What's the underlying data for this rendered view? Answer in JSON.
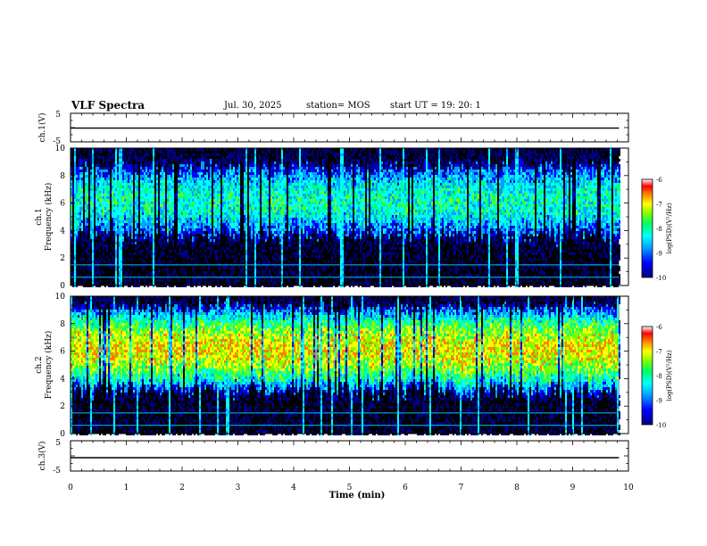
{
  "header": {
    "title": "VLF Spectra",
    "date": "Jul. 30, 2025",
    "station": "station= MOS",
    "start_ut": "start UT =   19: 20: 1"
  },
  "chart_data": [
    {
      "type": "line",
      "panel": "ch1-voltage",
      "ylabel": "ch.1(V)",
      "ylim": [
        -5,
        5
      ],
      "yticks": [
        "5",
        "-5"
      ],
      "xlim": [
        0,
        10
      ],
      "series": [
        {
          "values": [
            -0.2,
            -0.2,
            -0.2,
            -0.2,
            -0.2,
            -0.2,
            -0.2,
            -0.2,
            -0.2,
            -0.2
          ]
        }
      ]
    },
    {
      "type": "heatmap",
      "panel": "ch1-spectrogram",
      "ylabel": "ch.1",
      "ylabel2": "Frequency (kHz)",
      "ylim": [
        0,
        10
      ],
      "yticks": [
        "0",
        "2",
        "4",
        "6",
        "8",
        "10"
      ],
      "xlim": [
        0,
        10
      ],
      "data_end_min": 9.83,
      "band_khz": [
        3.5,
        9.0
      ],
      "colorbar": {
        "label": "log(PSD)(V²/Hz)",
        "ticks": [
          "-6",
          "-7",
          "-8",
          "-9",
          "-10"
        ],
        "range": [
          -10,
          -6
        ]
      },
      "peak_level": -8.0
    },
    {
      "type": "heatmap",
      "panel": "ch2-spectrogram",
      "ylabel": "ch.2",
      "ylabel2": "Frequency (kHz)",
      "ylim": [
        0,
        10
      ],
      "yticks": [
        "0",
        "2",
        "4",
        "6",
        "8",
        "10"
      ],
      "xlim": [
        0,
        10
      ],
      "data_end_min": 9.83,
      "band_khz": [
        3.0,
        9.5
      ],
      "colorbar": {
        "label": "log(PSD)(V²/Hz)",
        "ticks": [
          "-6",
          "-7",
          "-8",
          "-9",
          "-10"
        ],
        "range": [
          -10,
          -6
        ]
      },
      "peak_level": -7.0
    },
    {
      "type": "line",
      "panel": "ch3-voltage",
      "ylabel": "ch.3(V)",
      "ylim": [
        -5,
        5
      ],
      "yticks": [
        "5",
        "-5"
      ],
      "xlim": [
        0,
        10
      ],
      "xlabel": "Time (min)",
      "xticks": [
        "0",
        "1",
        "2",
        "3",
        "4",
        "5",
        "6",
        "7",
        "8",
        "9",
        "10"
      ],
      "series": [
        {
          "values": [
            -0.6,
            -0.6,
            -0.6,
            -0.6,
            -0.6,
            -0.6,
            -0.6,
            -0.6,
            -0.6,
            -0.6
          ]
        }
      ]
    }
  ],
  "colors": {
    "background": "#000000",
    "palette": [
      "#000000",
      "#000080",
      "#0000ff",
      "#00a0ff",
      "#00ffff",
      "#00ff80",
      "#80ff00",
      "#ffff00",
      "#ff8000",
      "#ff0000",
      "#ffffff"
    ]
  }
}
